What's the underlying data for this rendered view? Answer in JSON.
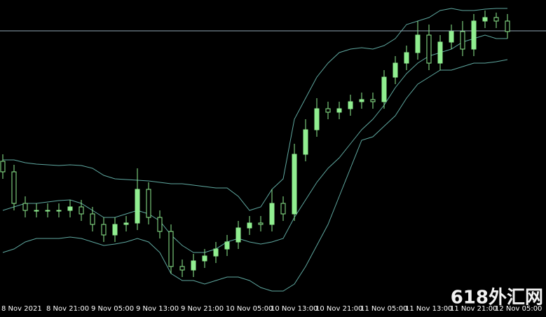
{
  "chart_data": {
    "type": "candlestick",
    "categories": [
      "8 Nov 2021",
      null,
      null,
      null,
      "8 Nov 21:00",
      null,
      null,
      null,
      "9 Nov 05:00",
      null,
      null,
      null,
      "9 Nov 13:00",
      null,
      null,
      null,
      "9 Nov 21:00",
      null,
      null,
      null,
      "10 Nov 05:00",
      null,
      null,
      null,
      "10 Nov 13:00",
      null,
      null,
      null,
      "10 Nov 21:00",
      null,
      null,
      null,
      "11 Nov 05:00",
      null,
      null,
      null,
      "11 Nov 13:00",
      null,
      null,
      null,
      "11 Nov 21:00",
      null,
      null,
      null,
      "12 Nov 05:00",
      null
    ],
    "open": [
      200,
      185,
      140,
      130,
      130,
      130,
      130,
      135,
      125,
      110,
      95,
      110,
      112,
      160,
      120,
      100,
      50,
      45,
      58,
      65,
      75,
      85,
      105,
      112,
      110,
      140,
      125,
      210,
      245,
      275,
      270,
      275,
      285,
      288,
      285,
      320,
      340,
      355,
      380,
      340,
      370,
      385,
      360,
      400,
      405,
      400
    ],
    "high": [
      210,
      195,
      150,
      140,
      140,
      140,
      145,
      145,
      135,
      120,
      120,
      122,
      190,
      170,
      130,
      110,
      60,
      68,
      75,
      85,
      95,
      115,
      122,
      122,
      160,
      150,
      225,
      260,
      290,
      285,
      285,
      295,
      298,
      298,
      330,
      350,
      365,
      400,
      395,
      380,
      395,
      400,
      410,
      415,
      412,
      410
    ],
    "low": [
      175,
      130,
      120,
      120,
      120,
      120,
      120,
      115,
      100,
      85,
      85,
      100,
      102,
      110,
      90,
      40,
      35,
      35,
      48,
      55,
      65,
      75,
      95,
      100,
      100,
      115,
      115,
      200,
      235,
      260,
      260,
      265,
      275,
      275,
      275,
      310,
      330,
      345,
      330,
      330,
      360,
      350,
      350,
      390,
      390,
      375
    ],
    "close": [
      185,
      140,
      130,
      130,
      130,
      130,
      135,
      125,
      110,
      95,
      110,
      112,
      160,
      120,
      100,
      50,
      45,
      58,
      65,
      75,
      85,
      105,
      112,
      110,
      140,
      125,
      210,
      245,
      275,
      270,
      275,
      285,
      288,
      285,
      320,
      340,
      355,
      380,
      340,
      370,
      385,
      360,
      400,
      405,
      400,
      385
    ],
    "bands": {
      "upper": [
        202,
        202,
        198,
        196,
        195,
        194,
        195,
        194,
        190,
        180,
        175,
        174,
        173,
        172,
        170,
        168,
        168,
        166,
        164,
        162,
        162,
        150,
        130,
        135,
        160,
        175,
        260,
        290,
        320,
        340,
        355,
        360,
        362,
        360,
        365,
        375,
        395,
        400,
        405,
        415,
        418,
        415,
        415,
        417,
        418,
        418
      ],
      "middle": [
        130,
        135,
        140,
        140,
        142,
        144,
        145,
        140,
        130,
        120,
        120,
        125,
        130,
        125,
        115,
        95,
        80,
        70,
        70,
        75,
        85,
        90,
        85,
        82,
        85,
        90,
        120,
        145,
        170,
        190,
        205,
        225,
        245,
        260,
        280,
        305,
        325,
        340,
        350,
        355,
        360,
        370,
        375,
        380,
        375,
        375
      ],
      "lower": [
        70,
        75,
        85,
        90,
        90,
        90,
        92,
        90,
        85,
        80,
        82,
        85,
        90,
        85,
        70,
        40,
        30,
        30,
        25,
        30,
        35,
        35,
        30,
        20,
        15,
        15,
        25,
        50,
        80,
        110,
        150,
        190,
        230,
        235,
        250,
        265,
        290,
        310,
        320,
        330,
        330,
        335,
        340,
        340,
        342,
        345
      ]
    },
    "price_line": 386,
    "ylim": [
      0,
      430
    ],
    "candle_color": "#90ee90",
    "band_color": "#5fa8a0",
    "price_line_color": "#8fa6b4",
    "watermark": "618外汇网"
  }
}
